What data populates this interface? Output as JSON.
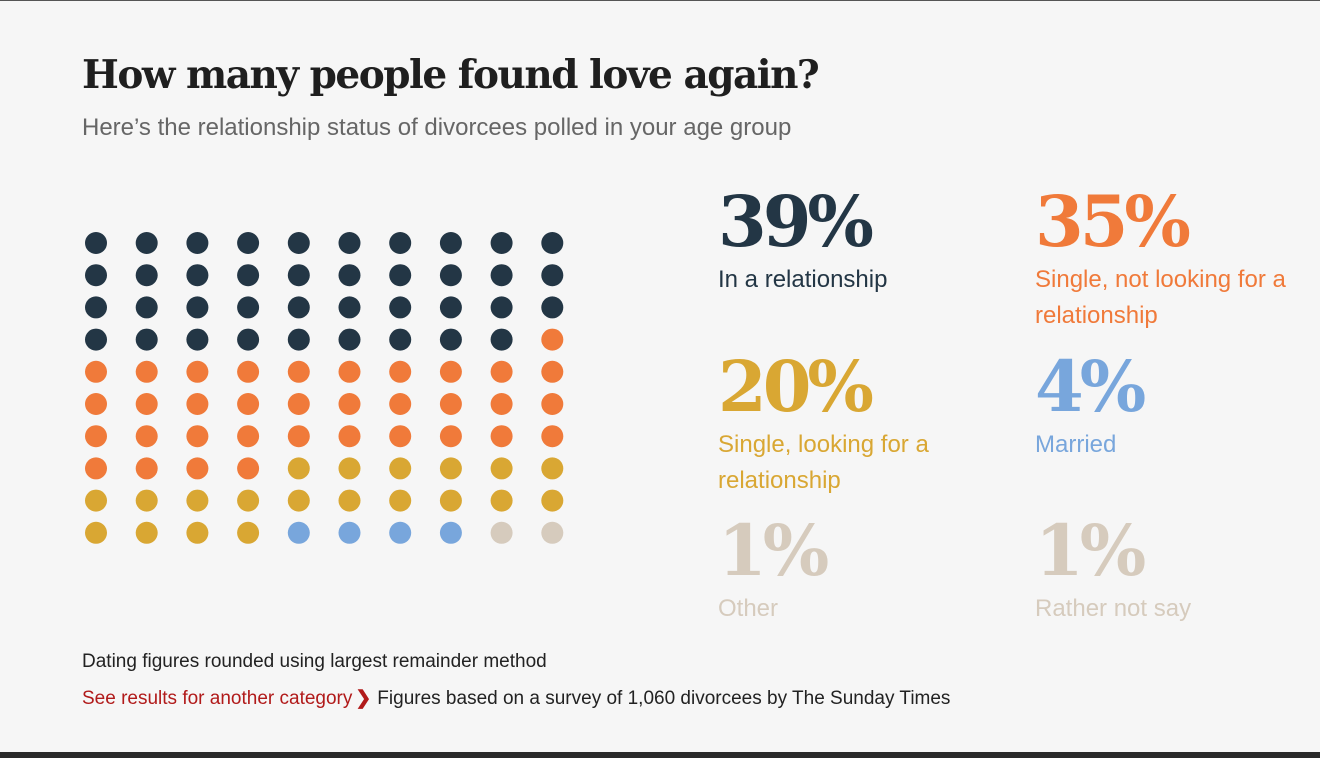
{
  "title": "How many people found love again?",
  "subtitle": "Here’s the relationship status of divorcees polled in your age group",
  "chart_data": {
    "type": "waffle",
    "grid": {
      "columns": 10,
      "rows": 10
    },
    "categories": [
      {
        "label": "In a relationship",
        "value": 39,
        "display": "39%",
        "color": "#233645"
      },
      {
        "label": "Single, not looking for a relationship",
        "value": 35,
        "display": "35%",
        "color": "#f07a3a"
      },
      {
        "label": "Single, looking for a relationship",
        "value": 20,
        "display": "20%",
        "color": "#d9a733"
      },
      {
        "label": "Married",
        "value": 4,
        "display": "4%",
        "color": "#78a6dc"
      },
      {
        "label": "Other",
        "value": 1,
        "display": "1%",
        "color": "#d6cbbd"
      },
      {
        "label": "Rather not say",
        "value": 1,
        "display": "1%",
        "color": "#d6cbbd"
      }
    ]
  },
  "footnote": "Dating figures rounded using largest remainder method",
  "link_label": "See results for another category",
  "link_chevron": "❯",
  "source": "Figures based on a survey of 1,060 divorcees by The Sunday Times"
}
